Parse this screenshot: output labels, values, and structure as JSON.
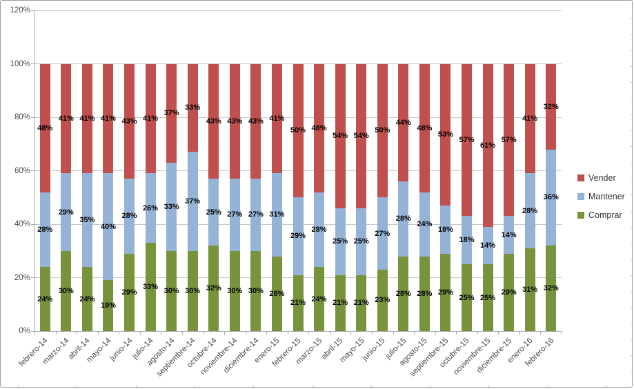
{
  "chart_data": {
    "type": "bar",
    "stacked": true,
    "stacked_100_percent": true,
    "title": "",
    "categories": [
      "febrero-14",
      "marzo-14",
      "abril-14",
      "mayo-14",
      "junio-14",
      "julio-14",
      "agosto-14",
      "septiembre-14",
      "octubre-14",
      "noviembre-14",
      "diciembre-14",
      "enero-15",
      "febrero-15",
      "marzo-15",
      "abril-15",
      "mayo-15",
      "junio-15",
      "julio-15",
      "agosto-15",
      "septiembre-15",
      "octubre-15",
      "noviembre-15",
      "diciembre-15",
      "enero-16",
      "febrero-16"
    ],
    "series": [
      {
        "name": "Comprar",
        "color": "#77933C",
        "values": [
          24,
          30,
          24,
          19,
          29,
          33,
          30,
          30,
          32,
          30,
          30,
          28,
          21,
          24,
          21,
          21,
          23,
          28,
          28,
          29,
          25,
          25,
          29,
          31,
          32
        ]
      },
      {
        "name": "Mantener",
        "color": "#95B3D7",
        "values": [
          28,
          29,
          35,
          40,
          28,
          26,
          33,
          37,
          25,
          27,
          27,
          31,
          29,
          28,
          25,
          25,
          27,
          28,
          24,
          18,
          18,
          14,
          14,
          28,
          36
        ]
      },
      {
        "name": "Vender",
        "color": "#C0504D",
        "values": [
          48,
          41,
          41,
          41,
          43,
          41,
          37,
          33,
          43,
          43,
          43,
          41,
          50,
          48,
          54,
          54,
          50,
          44,
          48,
          53,
          57,
          61,
          57,
          41,
          32
        ]
      }
    ],
    "data_label_suffix": "%",
    "y_axis": {
      "min": 0,
      "max": 120,
      "step": 20,
      "tick_values": [
        0,
        20,
        40,
        60,
        80,
        100,
        120
      ],
      "tick_labels": [
        "0%",
        "20%",
        "40%",
        "60%",
        "80%",
        "100%",
        "120%"
      ]
    },
    "xlabel": "",
    "ylabel": "",
    "grid": true,
    "legend": {
      "position": "right",
      "entries": [
        "Vender",
        "Mantener",
        "Comprar"
      ]
    }
  },
  "colors": {
    "vender": "#C0504D",
    "mantener": "#95B3D7",
    "comprar": "#77933C",
    "gridline": "#C9C9C9",
    "axis": "#A8A8A8",
    "axis_text": "#4A4A4A",
    "data_label": "#000000",
    "background": "#FFFFFF"
  }
}
